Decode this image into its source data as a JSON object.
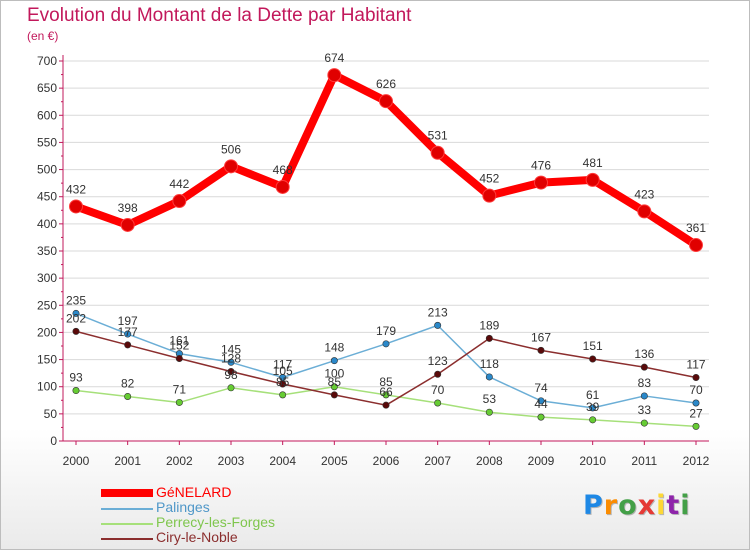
{
  "header": {
    "title": "Evolution du Montant de la Dette par Habitant",
    "subtitle": "(en €)"
  },
  "colors": {
    "title": "#c2185b",
    "axis": "#c2185b",
    "grid": "#d9d9d9"
  },
  "chart_data": {
    "type": "line",
    "title": "Evolution du Montant de la Dette par Habitant",
    "subtitle": "(en €)",
    "xlabel": "",
    "ylabel": "",
    "x": [
      "2000",
      "2001",
      "2002",
      "2003",
      "2004",
      "2005",
      "2006",
      "2007",
      "2008",
      "2009",
      "2010",
      "2011",
      "2012"
    ],
    "ylim": [
      0,
      700
    ],
    "yticks": [
      "0",
      "50",
      "100",
      "150",
      "200",
      "250",
      "300",
      "350",
      "400",
      "450",
      "500",
      "550",
      "600",
      "650",
      "700"
    ],
    "grid": "horizontal",
    "legend_position": "bottom-left",
    "series": [
      {
        "name": "GéNELARD",
        "values": [
          432,
          398,
          442,
          506,
          468,
          674,
          626,
          531,
          452,
          476,
          481,
          423,
          361
        ],
        "labels": [
          "432",
          "398",
          "442",
          "506",
          "468",
          "674",
          "626",
          "531",
          "452",
          "476",
          "481",
          "423",
          "361"
        ],
        "color": "#ff0000",
        "marker": "#e00000"
      },
      {
        "name": "Palinges",
        "values": [
          235,
          197,
          161,
          145,
          117,
          148,
          179,
          213,
          118,
          74,
          61,
          83,
          70
        ],
        "labels": [
          "235",
          "197",
          "161",
          "145",
          "117",
          "148",
          "179",
          "213",
          "118",
          "74",
          "61",
          "83",
          "70"
        ],
        "color": "#6baed6",
        "marker": "#2a88c9"
      },
      {
        "name": "Perrecy-les-Forges",
        "values": [
          93,
          82,
          71,
          98,
          85,
          100,
          85,
          70,
          53,
          44,
          39,
          33,
          27
        ],
        "labels": [
          "93",
          "82",
          "71",
          "98",
          "85",
          "100",
          "85",
          "70",
          "53",
          "44",
          "39",
          "33",
          "27"
        ],
        "color": "#a6e07a",
        "marker": "#66cc33"
      },
      {
        "name": "Ciry-le-Noble",
        "values": [
          202,
          177,
          152,
          128,
          105,
          85,
          66,
          123,
          189,
          167,
          151,
          136,
          117
        ],
        "labels": [
          "202",
          "177",
          "152",
          "128",
          "105",
          "85",
          "66",
          "123",
          "189",
          "167",
          "151",
          "136",
          "117"
        ],
        "color": "#8b2e2e",
        "marker": "#5a0a0a"
      }
    ]
  },
  "legend": [
    {
      "label": "GéNELARD",
      "color": "#ff0000",
      "weight": "thick"
    },
    {
      "label": "Palinges",
      "color": "#6baed6",
      "weight": "thin"
    },
    {
      "label": "Perrecy-les-Forges",
      "color": "#a6e07a",
      "weight": "thin"
    },
    {
      "label": "Ciry-le-Noble",
      "color": "#8b2e2e",
      "weight": "thin"
    }
  ],
  "brand": {
    "letters": [
      "P",
      "r",
      "o",
      "x",
      "i",
      "t",
      "i"
    ],
    "colors": [
      "#1e88e5",
      "#fb8c00",
      "#43a047",
      "#e53935",
      "#fdd835",
      "#8e24aa",
      "#43a047"
    ]
  }
}
